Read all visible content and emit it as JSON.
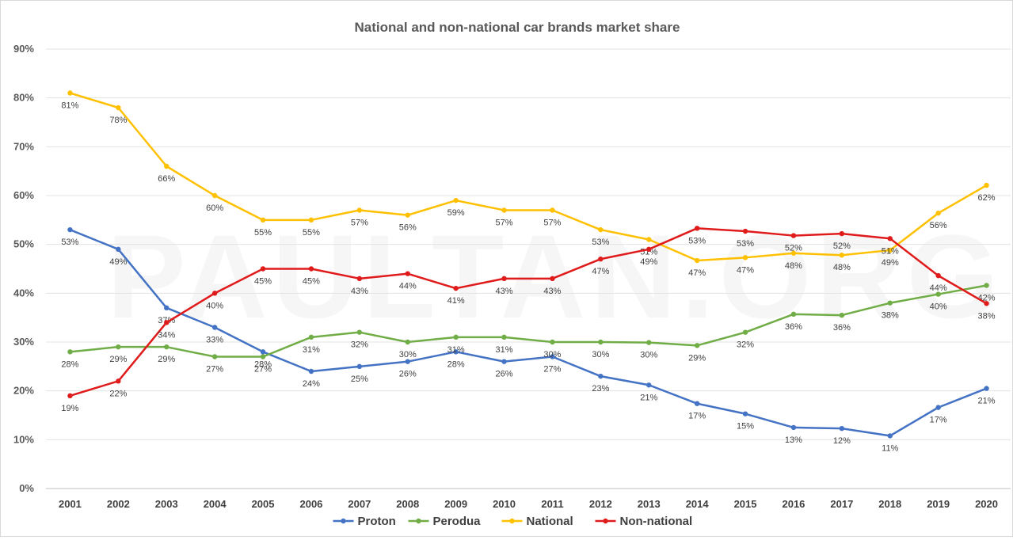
{
  "chart_data": {
    "type": "line",
    "title": "National and non-national car brands market share",
    "watermark": "PAULTAN.ORG",
    "xlabel": "",
    "ylabel": "",
    "categories": [
      "2001",
      "2002",
      "2003",
      "2004",
      "2005",
      "2006",
      "2007",
      "2008",
      "2009",
      "2010",
      "2011",
      "2012",
      "2013",
      "2014",
      "2015",
      "2016",
      "2017",
      "2018",
      "2019",
      "2020"
    ],
    "y_ticks": [
      "0%",
      "10%",
      "20%",
      "30%",
      "40%",
      "50%",
      "60%",
      "70%",
      "80%",
      "90%"
    ],
    "ylim": [
      0,
      90
    ],
    "grid": true,
    "legend_position": "bottom",
    "series": [
      {
        "name": "Proton",
        "color": "#4472c4",
        "values": [
          53,
          49,
          37,
          33,
          28,
          24,
          25,
          26,
          28,
          26,
          27,
          23,
          21.2,
          17.4,
          15.3,
          12.5,
          12.3,
          10.8,
          16.6,
          20.5
        ],
        "labels": [
          "53%",
          "49%",
          "37%",
          "33%",
          "28%",
          "24%",
          "25%",
          "26%",
          "28%",
          "26%",
          "27%",
          "23%",
          "21%",
          "17%",
          "15%",
          "13%",
          "12%",
          "11%",
          "17%",
          "21%"
        ]
      },
      {
        "name": "Perodua",
        "color": "#70ad47",
        "values": [
          28,
          29,
          29,
          27,
          27,
          31,
          32,
          30,
          31,
          31,
          30,
          30,
          29.9,
          29.3,
          32,
          35.7,
          35.5,
          38,
          39.8,
          41.6
        ],
        "labels": [
          "28%",
          "29%",
          "29%",
          "27%",
          "27%",
          "31%",
          "32%",
          "30%",
          "31%",
          "31%",
          "30%",
          "30%",
          "30%",
          "29%",
          "32%",
          "36%",
          "36%",
          "38%",
          "40%",
          "42%"
        ]
      },
      {
        "name": "National",
        "color": "#ffc000",
        "values": [
          81,
          78,
          66,
          60,
          55,
          55,
          57,
          56,
          59,
          57,
          57,
          53,
          51,
          46.7,
          47.3,
          48.2,
          47.8,
          48.8,
          56.4,
          62.1
        ],
        "labels": [
          "81%",
          "78%",
          "66%",
          "60%",
          "55%",
          "55%",
          "57%",
          "56%",
          "59%",
          "57%",
          "57%",
          "53%",
          "51%",
          "47%",
          "47%",
          "48%",
          "48%",
          "49%",
          "56%",
          "62%"
        ]
      },
      {
        "name": "Non-national",
        "color": "#e01b1b",
        "values": [
          19,
          22,
          34,
          40,
          45,
          45,
          43,
          44,
          41,
          43,
          43,
          47,
          49,
          53.3,
          52.7,
          51.8,
          52.2,
          51.2,
          43.6,
          37.9
        ],
        "labels": [
          "19%",
          "22%",
          "34%",
          "40%",
          "45%",
          "45%",
          "43%",
          "44%",
          "41%",
          "43%",
          "43%",
          "47%",
          "49%",
          "53%",
          "53%",
          "52%",
          "52%",
          "51%",
          "44%",
          "38%"
        ]
      }
    ]
  }
}
